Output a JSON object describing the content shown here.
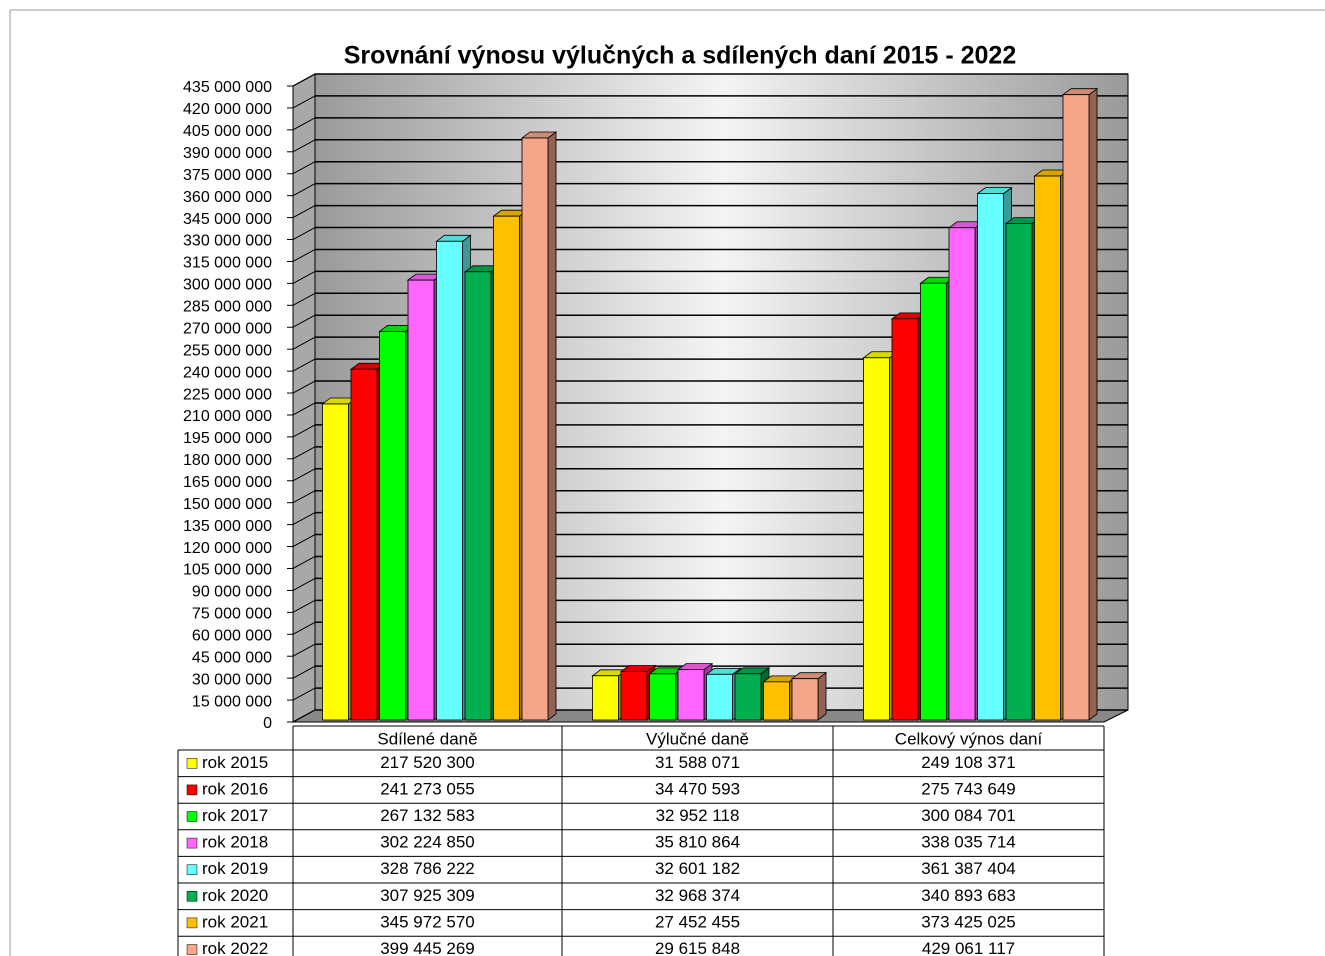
{
  "chart_data": {
    "type": "bar3d",
    "title": "Srovnání výnosu výlučných a sdílených daní 2015 - 2022",
    "categories": [
      "Sdílené daně",
      "Výlučné daně",
      "Celkový výnos daní"
    ],
    "series": [
      {
        "name": "rok 2015",
        "color": "#ffff00",
        "values": [
          217520300,
          31588071,
          249108371
        ],
        "value_labels": [
          "217 520 300",
          "31 588 071",
          "249 108 371"
        ]
      },
      {
        "name": "rok 2016",
        "color": "#ff0000",
        "values": [
          241273055,
          34470593,
          275743649
        ],
        "value_labels": [
          "241 273 055",
          "34 470 593",
          "275 743 649"
        ]
      },
      {
        "name": "rok 2017",
        "color": "#00ff00",
        "values": [
          267132583,
          32952118,
          300084701
        ],
        "value_labels": [
          "267 132 583",
          "32 952 118",
          "300 084 701"
        ]
      },
      {
        "name": "rok 2018",
        "color": "#ff66ff",
        "values": [
          302224850,
          35810864,
          338035714
        ],
        "value_labels": [
          "302 224 850",
          "35 810 864",
          "338 035 714"
        ]
      },
      {
        "name": "rok 2019",
        "color": "#66ffff",
        "values": [
          328786222,
          32601182,
          361387404
        ],
        "value_labels": [
          "328 786 222",
          "32 601 182",
          "361 387 404"
        ]
      },
      {
        "name": "rok 2020",
        "color": "#00b050",
        "values": [
          307925309,
          32968374,
          340893683
        ],
        "value_labels": [
          "307 925 309",
          "32 968 374",
          "340 893 683"
        ]
      },
      {
        "name": "rok 2021",
        "color": "#ffc000",
        "values": [
          345972570,
          27452455,
          373425025
        ],
        "value_labels": [
          "345 972 570",
          "27 452 455",
          "373 425 025"
        ]
      },
      {
        "name": "rok 2022",
        "color": "#f4a58a",
        "values": [
          399445269,
          29615848,
          429061117
        ],
        "value_labels": [
          "399 445 269",
          "29 615 848",
          "429 061 117"
        ]
      }
    ],
    "ylim": [
      0,
      435000000
    ],
    "yticks": [
      0,
      {
        "value": 15000000,
        "label": "15 000 000"
      },
      {
        "value": 30000000,
        "label": "30 000 000"
      },
      {
        "value": 45000000,
        "label": "45 000 000"
      },
      {
        "value": 60000000,
        "label": "60 000 000"
      },
      {
        "value": 75000000,
        "label": "75 000 000"
      },
      {
        "value": 90000000,
        "label": "90 000 000"
      },
      {
        "value": 105000000,
        "label": "105 000 000"
      },
      {
        "value": 120000000,
        "label": "120 000 000"
      },
      {
        "value": 135000000,
        "label": "135 000 000"
      },
      {
        "value": 150000000,
        "label": "150 000 000"
      },
      {
        "value": 165000000,
        "label": "165 000 000"
      },
      {
        "value": 180000000,
        "label": "180 000 000"
      },
      {
        "value": 195000000,
        "label": "195 000 000"
      },
      {
        "value": 210000000,
        "label": "210 000 000"
      },
      {
        "value": 225000000,
        "label": "225 000 000"
      },
      {
        "value": 240000000,
        "label": "240 000 000"
      },
      {
        "value": 255000000,
        "label": "255 000 000"
      },
      {
        "value": 270000000,
        "label": "270 000 000"
      },
      {
        "value": 285000000,
        "label": "285 000 000"
      },
      {
        "value": 300000000,
        "label": "300 000 000"
      },
      {
        "value": 315000000,
        "label": "315 000 000"
      },
      {
        "value": 330000000,
        "label": "330 000 000"
      },
      {
        "value": 345000000,
        "label": "345 000 000"
      },
      {
        "value": 360000000,
        "label": "360 000 000"
      },
      {
        "value": 375000000,
        "label": "375 000 000"
      },
      {
        "value": 390000000,
        "label": "390 000 000"
      },
      {
        "value": 405000000,
        "label": "405 000 000"
      },
      {
        "value": 420000000,
        "label": "420 000 000"
      },
      {
        "value": 435000000,
        "label": "435 000 000"
      }
    ],
    "grid": true
  }
}
